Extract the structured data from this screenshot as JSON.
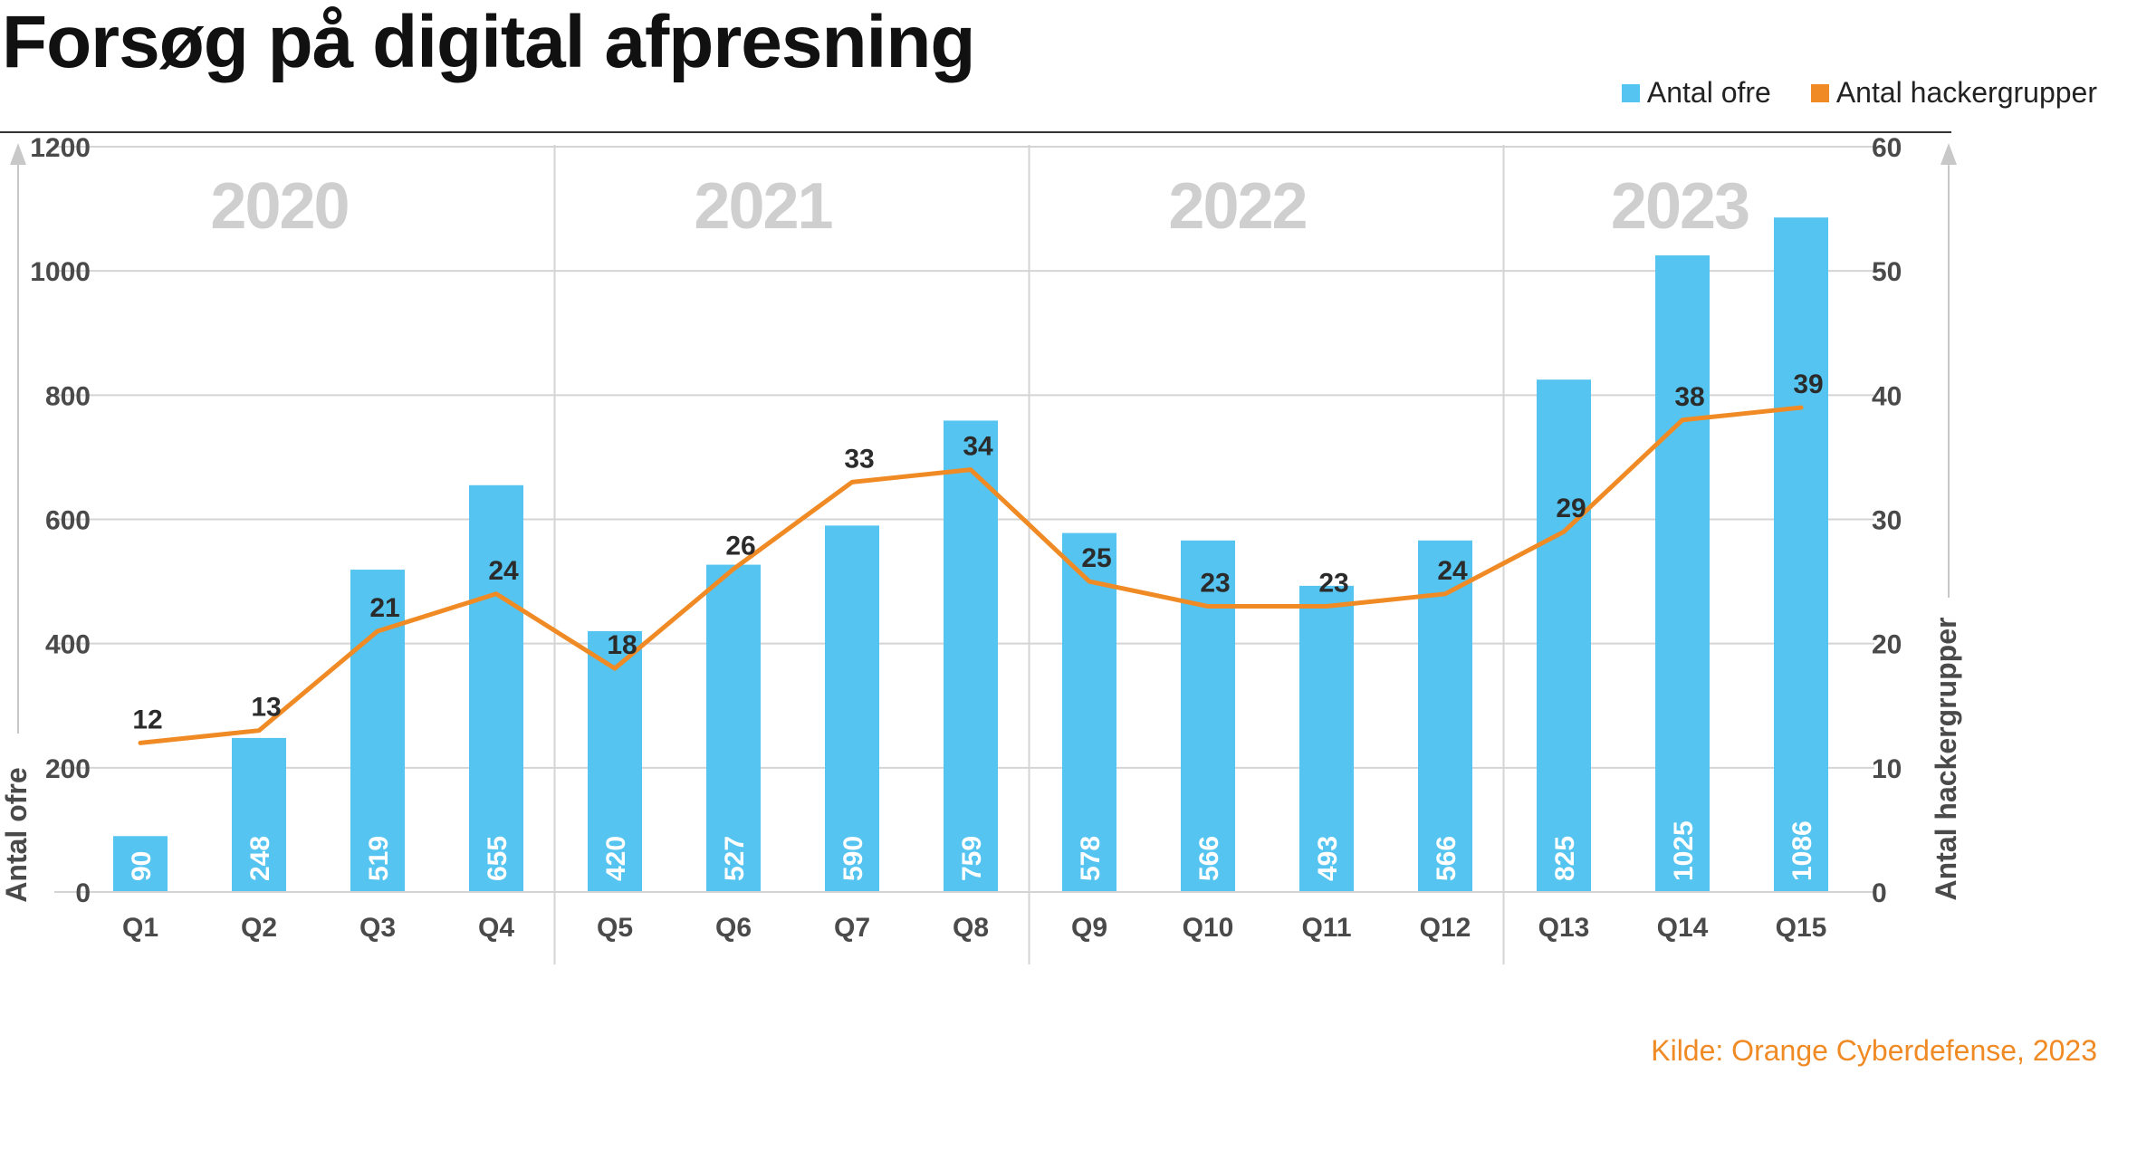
{
  "page": {
    "title": "Forsøg på digital afpresning",
    "source": "Kilde: Orange Cyberdefense, 2023"
  },
  "legend": {
    "bars_label": "Antal ofre",
    "line_label": "Antal hackergrupper"
  },
  "colors": {
    "bar": "#55c4f0",
    "line": "#f08a24",
    "source_text": "#f08a24",
    "year_label": "#cfcfcf",
    "grid": "#d4d4d4",
    "axis_text": "#4a4a4a"
  },
  "chart_data": {
    "type": "bar",
    "title": "Forsøg på digital afpresning",
    "categories": [
      "Q1",
      "Q2",
      "Q3",
      "Q4",
      "Q5",
      "Q6",
      "Q7",
      "Q8",
      "Q9",
      "Q10",
      "Q11",
      "Q12",
      "Q13",
      "Q14",
      "Q15"
    ],
    "year_groups": [
      {
        "label": "2020",
        "categories": [
          "Q1",
          "Q2",
          "Q3",
          "Q4"
        ]
      },
      {
        "label": "2021",
        "categories": [
          "Q5",
          "Q6",
          "Q7",
          "Q8"
        ]
      },
      {
        "label": "2022",
        "categories": [
          "Q9",
          "Q10",
          "Q11",
          "Q12"
        ]
      },
      {
        "label": "2023",
        "categories": [
          "Q13",
          "Q14",
          "Q15"
        ]
      }
    ],
    "series": [
      {
        "name": "Antal ofre",
        "type": "bar",
        "axis": "left",
        "values": [
          90,
          248,
          519,
          655,
          420,
          527,
          590,
          759,
          578,
          566,
          493,
          566,
          825,
          1025,
          1086
        ]
      },
      {
        "name": "Antal hackergrupper",
        "type": "line",
        "axis": "right",
        "values": [
          12,
          13,
          21,
          24,
          18,
          26,
          33,
          34,
          25,
          23,
          23,
          24,
          29,
          38,
          39
        ]
      }
    ],
    "ylabel": "Antal ofre",
    "y2label": "Antal hackergrupper",
    "ylim": [
      0,
      1200
    ],
    "y2lim": [
      0,
      60
    ],
    "yticks": [
      "0",
      "200",
      "400",
      "600",
      "800",
      "1000",
      "1200"
    ],
    "y2ticks": [
      "0",
      "10",
      "20",
      "30",
      "40",
      "50",
      "60"
    ],
    "grid": true,
    "legend_position": "top-right"
  }
}
